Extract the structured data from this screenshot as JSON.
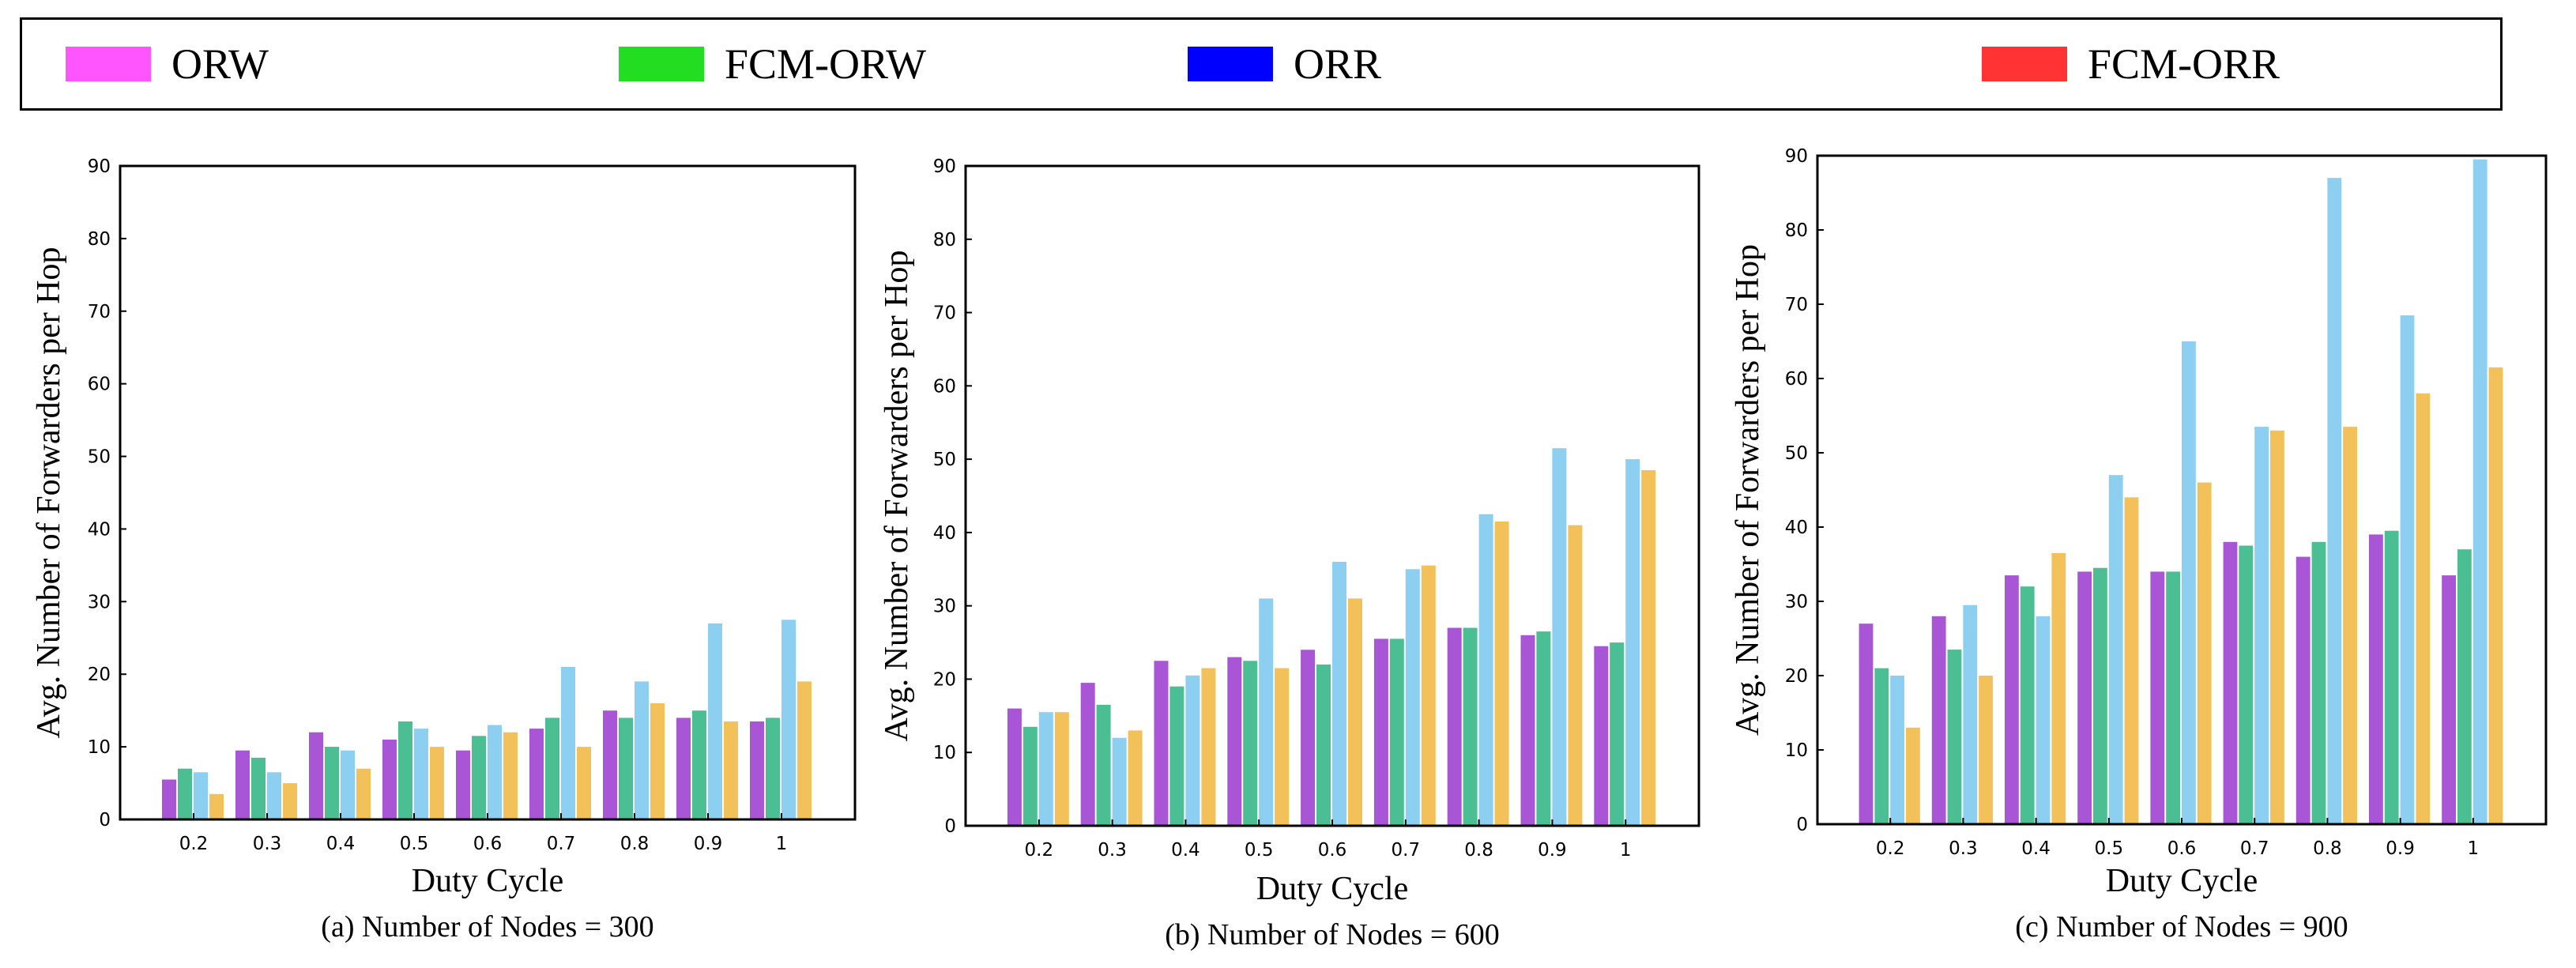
{
  "legend": {
    "items": [
      {
        "label": "ORW",
        "color": "#ff55ff"
      },
      {
        "label": "FCM-ORW",
        "color": "#22dd22"
      },
      {
        "label": "ORR",
        "color": "#0000ff"
      },
      {
        "label": "FCM-ORR",
        "color": "#ff3333"
      }
    ]
  },
  "bar_colors": [
    "#a855d6",
    "#4bbf93",
    "#8dcff0",
    "#f2c15a"
  ],
  "chart_data": [
    {
      "type": "bar",
      "title": "",
      "caption": "(a) Number of Nodes = 300",
      "xlabel": "Duty Cycle",
      "ylabel": "Avg. Number of Forwarders per Hop",
      "ylim": [
        0,
        90
      ],
      "yticks": [
        0,
        10,
        20,
        30,
        40,
        50,
        60,
        70,
        80,
        90
      ],
      "categories": [
        "0.2",
        "0.3",
        "0.4",
        "0.5",
        "0.6",
        "0.7",
        "0.8",
        "0.9",
        "1"
      ],
      "series": [
        {
          "name": "ORW",
          "values": [
            5.5,
            9.5,
            12,
            11,
            9.5,
            12.5,
            15,
            14,
            13.5
          ]
        },
        {
          "name": "FCM-ORW",
          "values": [
            7,
            8.5,
            10,
            13.5,
            11.5,
            14,
            14,
            15,
            14
          ]
        },
        {
          "name": "ORR",
          "values": [
            6.5,
            6.5,
            9.5,
            12.5,
            13,
            21,
            19,
            27,
            27.5
          ]
        },
        {
          "name": "FCM-ORR",
          "values": [
            3.5,
            5,
            7,
            10,
            12,
            10,
            16,
            13.5,
            19
          ]
        }
      ]
    },
    {
      "type": "bar",
      "title": "",
      "caption": "(b) Number of Nodes = 600",
      "xlabel": "Duty Cycle",
      "ylabel": "Avg. Number of Forwarders per Hop",
      "ylim": [
        0,
        90
      ],
      "yticks": [
        0,
        10,
        20,
        30,
        40,
        50,
        60,
        70,
        80,
        90
      ],
      "categories": [
        "0.2",
        "0.3",
        "0.4",
        "0.5",
        "0.6",
        "0.7",
        "0.8",
        "0.9",
        "1"
      ],
      "series": [
        {
          "name": "ORW",
          "values": [
            16,
            19.5,
            22.5,
            23,
            24,
            25.5,
            27,
            26,
            24.5
          ]
        },
        {
          "name": "FCM-ORW",
          "values": [
            13.5,
            16.5,
            19,
            22.5,
            22,
            25.5,
            27,
            26.5,
            25
          ]
        },
        {
          "name": "ORR",
          "values": [
            15.5,
            12,
            20.5,
            31,
            36,
            35,
            42.5,
            51.5,
            50
          ]
        },
        {
          "name": "FCM-ORR",
          "values": [
            15.5,
            13,
            21.5,
            21.5,
            31,
            35.5,
            41.5,
            41,
            48.5
          ]
        }
      ]
    },
    {
      "type": "bar",
      "title": "",
      "caption": "(c) Number of Nodes = 900",
      "xlabel": "Duty Cycle",
      "ylabel": "Avg. Number of Forwarders per Hop",
      "ylim": [
        0,
        90
      ],
      "yticks": [
        0,
        10,
        20,
        30,
        40,
        50,
        60,
        70,
        80,
        90
      ],
      "categories": [
        "0.2",
        "0.3",
        "0.4",
        "0.5",
        "0.6",
        "0.7",
        "0.8",
        "0.9",
        "1"
      ],
      "series": [
        {
          "name": "ORW",
          "values": [
            27,
            28,
            33.5,
            34,
            34,
            38,
            36,
            39,
            33.5
          ]
        },
        {
          "name": "FCM-ORW",
          "values": [
            21,
            23.5,
            32,
            34.5,
            34,
            37.5,
            38,
            39.5,
            37
          ]
        },
        {
          "name": "ORR",
          "values": [
            20,
            29.5,
            28,
            47,
            65,
            53.5,
            87,
            68.5,
            89.5
          ]
        },
        {
          "name": "FCM-ORR",
          "values": [
            13,
            20,
            36.5,
            44,
            46,
            53,
            53.5,
            58,
            61.5
          ]
        }
      ]
    }
  ]
}
